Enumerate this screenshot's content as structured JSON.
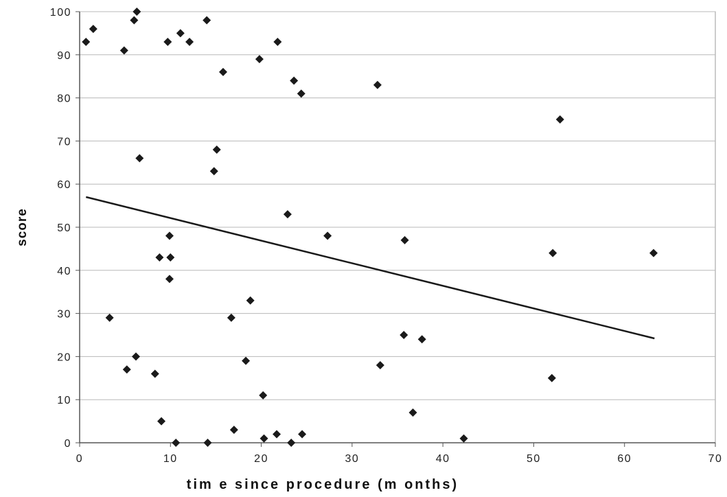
{
  "chart_data": {
    "type": "scatter",
    "title": "",
    "xlabel": "tim e since procedure (m onths)",
    "ylabel": "score",
    "xlim": [
      0,
      70
    ],
    "ylim": [
      0,
      100
    ],
    "xticks": [
      0,
      10,
      20,
      30,
      40,
      50,
      60,
      70
    ],
    "yticks": [
      0,
      10,
      20,
      30,
      40,
      50,
      60,
      70,
      80,
      90,
      100
    ],
    "grid": "horizontal",
    "legend": "none",
    "marker": "diamond",
    "marker_color": "#1a1a1a",
    "line_color": "#1a1a1a",
    "series": [
      {
        "points": [
          [
            0.7,
            93
          ],
          [
            1.5,
            96
          ],
          [
            3.3,
            29
          ],
          [
            4.9,
            91
          ],
          [
            5.2,
            17
          ],
          [
            6.0,
            98
          ],
          [
            6.2,
            20
          ],
          [
            6.3,
            100
          ],
          [
            6.6,
            66
          ],
          [
            8.3,
            16
          ],
          [
            8.8,
            43
          ],
          [
            9.0,
            5
          ],
          [
            9.7,
            93
          ],
          [
            9.9,
            38
          ],
          [
            9.9,
            48
          ],
          [
            10.0,
            43
          ],
          [
            10.6,
            0
          ],
          [
            11.1,
            95
          ],
          [
            12.1,
            93
          ],
          [
            14.0,
            98
          ],
          [
            14.1,
            0
          ],
          [
            14.8,
            63
          ],
          [
            15.1,
            68
          ],
          [
            15.8,
            86
          ],
          [
            16.7,
            29
          ],
          [
            17.0,
            3
          ],
          [
            18.3,
            19
          ],
          [
            18.8,
            33
          ],
          [
            19.8,
            89
          ],
          [
            20.2,
            11
          ],
          [
            20.3,
            1
          ],
          [
            21.7,
            2
          ],
          [
            21.8,
            93
          ],
          [
            22.9,
            53
          ],
          [
            23.3,
            0
          ],
          [
            23.6,
            84
          ],
          [
            24.4,
            81
          ],
          [
            24.5,
            2
          ],
          [
            27.3,
            48
          ],
          [
            32.8,
            83
          ],
          [
            33.1,
            18
          ],
          [
            35.7,
            25
          ],
          [
            35.8,
            47
          ],
          [
            36.7,
            7
          ],
          [
            37.7,
            24
          ],
          [
            42.3,
            1
          ],
          [
            52.0,
            15
          ],
          [
            52.1,
            44
          ],
          [
            52.9,
            75
          ],
          [
            63.2,
            44
          ]
        ]
      }
    ],
    "trendline": {
      "x": [
        0.7,
        63.3
      ],
      "y": [
        57,
        24.2
      ]
    }
  }
}
